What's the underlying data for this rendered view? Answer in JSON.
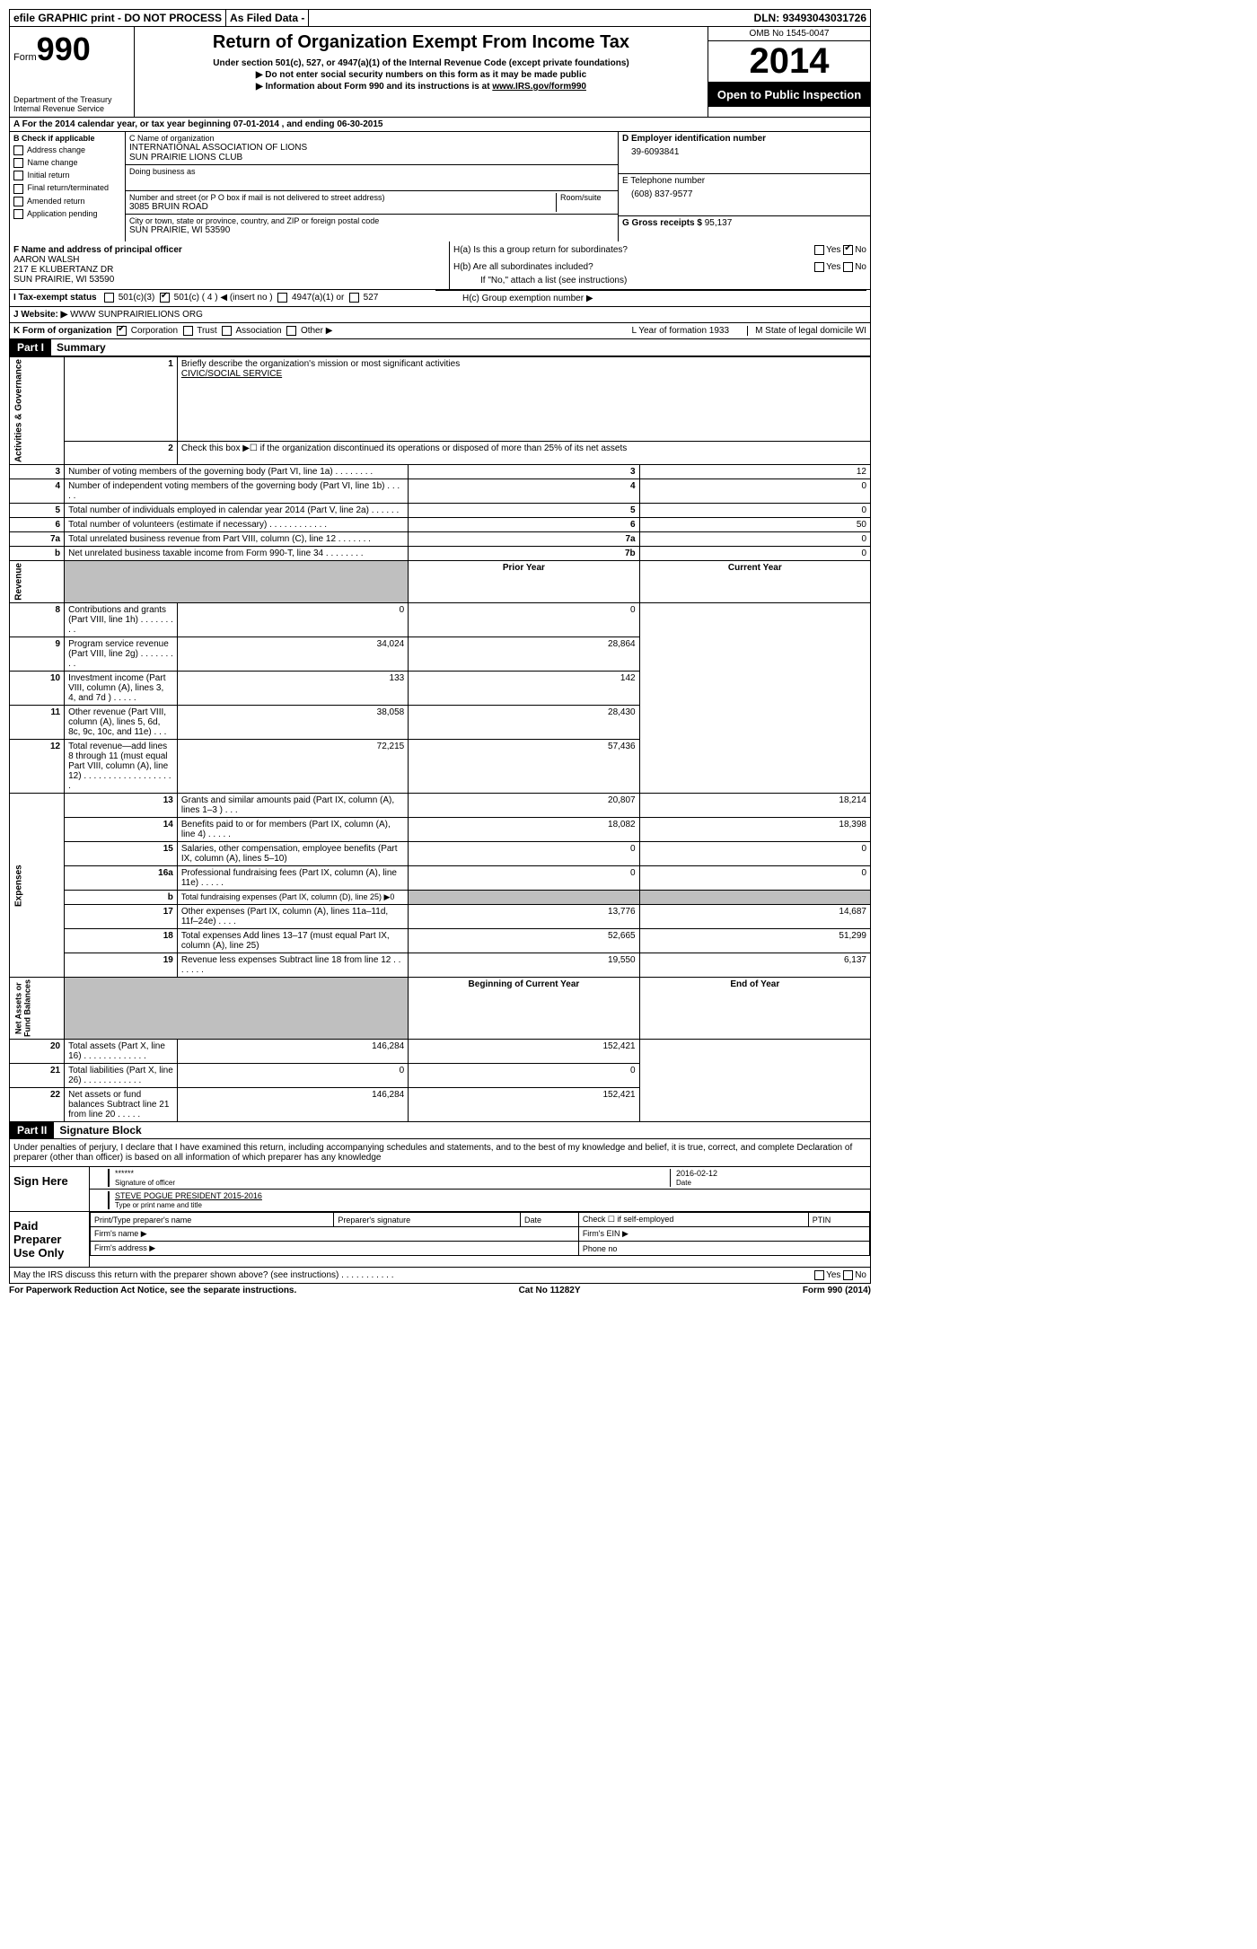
{
  "topbar": {
    "efile": "efile GRAPHIC print - DO NOT PROCESS",
    "asfiled": "As Filed Data -",
    "dln_label": "DLN:",
    "dln": "93493043031726"
  },
  "header": {
    "form_label": "Form",
    "form_no": "990",
    "dept": "Department of the Treasury",
    "irs": "Internal Revenue Service",
    "title": "Return of Organization Exempt From Income Tax",
    "subtitle": "Under section 501(c), 527, or 4947(a)(1) of the Internal Revenue Code (except private foundations)",
    "note1": "▶ Do not enter social security numbers on this form as it may be made public",
    "note2_prefix": "▶ Information about Form 990 and its instructions is at ",
    "note2_link": "www.IRS.gov/form990",
    "omb": "OMB No 1545-0047",
    "year": "2014",
    "open": "Open to Public Inspection"
  },
  "row_a": "A For the 2014 calendar year, or tax year beginning 07-01-2014    , and ending 06-30-2015",
  "section_b": {
    "label": "B Check if applicable",
    "items": [
      "Address change",
      "Name change",
      "Initial return",
      "Final return/terminated",
      "Amended return",
      "Application pending"
    ]
  },
  "section_c": {
    "name_label": "C Name of organization",
    "name1": "INTERNATIONAL ASSOCIATION OF LIONS",
    "name2": "SUN PRAIRIE LIONS CLUB",
    "dba_label": "Doing business as",
    "addr_label": "Number and street (or P O  box if mail is not delivered to street address)",
    "room_label": "Room/suite",
    "addr": "3085 BRUIN ROAD",
    "city_label": "City or town, state or province, country, and ZIP or foreign postal code",
    "city": "SUN PRAIRIE, WI  53590"
  },
  "section_d": {
    "label": "D Employer identification number",
    "value": "39-6093841"
  },
  "section_e": {
    "label": "E Telephone number",
    "value": "(608) 837-9577"
  },
  "section_g": {
    "label": "G Gross receipts $",
    "value": "95,137"
  },
  "section_f": {
    "label": "F   Name and address of principal officer",
    "name": "AARON WALSH",
    "street": "217 E KLUBERTANZ DR",
    "city": "SUN PRAIRIE, WI  53590"
  },
  "section_h": {
    "ha": "H(a)  Is this a group return for subordinates?",
    "hb": "H(b)  Are all subordinates included?",
    "hnote": "If \"No,\" attach a list  (see instructions)",
    "hc": "H(c)   Group exemption number ▶"
  },
  "row_i": {
    "label": "I  Tax-exempt status",
    "opts": [
      "501(c)(3)",
      "501(c) ( 4 ) ◀ (insert no )",
      "4947(a)(1) or",
      "527"
    ]
  },
  "row_j": {
    "label": "J  Website: ▶",
    "value": "WWW SUNPRAIRIELIONS ORG"
  },
  "row_k": {
    "label": "K Form of organization",
    "opts": [
      "Corporation",
      "Trust",
      "Association",
      "Other ▶"
    ],
    "l": "L Year of formation  1933",
    "m": "M State of legal domicile  WI"
  },
  "part1": {
    "header": "Part I",
    "title": "Summary"
  },
  "governance": {
    "q1_label": "Briefly describe the organization's mission or most significant activities",
    "q1_value": "CIVIC/SOCIAL SERVICE",
    "q2": "Check this box ▶☐ if the organization discontinued its operations or disposed of more than 25% of its net assets",
    "rows": [
      {
        "n": "3",
        "t": "Number of voting members of the governing body (Part VI, line 1a)  .   .   .   .   .   .   .   .",
        "k": "3",
        "v": "12"
      },
      {
        "n": "4",
        "t": "Number of independent voting members of the governing body (Part VI, line 1b)   .   .   .   .   .",
        "k": "4",
        "v": "0"
      },
      {
        "n": "5",
        "t": "Total number of individuals employed in calendar year 2014 (Part V, line 2a)    .   .   .   .   .   .",
        "k": "5",
        "v": "0"
      },
      {
        "n": "6",
        "t": "Total number of volunteers (estimate if necessary)   .   .   .   .   .   .   .   .   .   .   .   .",
        "k": "6",
        "v": "50"
      },
      {
        "n": "7a",
        "t": "Total unrelated business revenue from Part VIII, column (C), line 12   .   .   .   .   .   .   .",
        "k": "7a",
        "v": "0"
      },
      {
        "n": "b",
        "t": "Net unrelated business taxable income from Form 990-T, line 34   .   .   .   .   .   .   .   .",
        "k": "7b",
        "v": "0"
      }
    ]
  },
  "col_headers": {
    "prior": "Prior Year",
    "current": "Current Year",
    "boy": "Beginning of Current Year",
    "eoy": "End of Year"
  },
  "revenue": [
    {
      "n": "8",
      "t": "Contributions and grants (Part VIII, line 1h)   .   .   .   .   .   .   .   .   .",
      "p": "0",
      "c": "0"
    },
    {
      "n": "9",
      "t": "Program service revenue (Part VIII, line 2g)   .   .   .   .   .   .   .   .   .",
      "p": "34,024",
      "c": "28,864"
    },
    {
      "n": "10",
      "t": "Investment income (Part VIII, column (A), lines 3, 4, and 7d )   .   .   .   .   .",
      "p": "133",
      "c": "142"
    },
    {
      "n": "11",
      "t": "Other revenue (Part VIII, column (A), lines 5, 6d, 8c, 9c, 10c, and 11e)   .   .   .",
      "p": "38,058",
      "c": "28,430"
    },
    {
      "n": "12",
      "t": "Total revenue—add lines 8 through 11 (must equal Part VIII, column (A), line 12)  .   .   .   .   .   .   .   .   .   .   .   .   .   .   .   .   .   .   .",
      "p": "72,215",
      "c": "57,436"
    }
  ],
  "expenses": [
    {
      "n": "13",
      "t": "Grants and similar amounts paid (Part IX, column (A), lines 1–3 )    .   .   .",
      "p": "20,807",
      "c": "18,214"
    },
    {
      "n": "14",
      "t": "Benefits paid to or for members (Part IX, column (A), line 4)   .   .   .   .   .",
      "p": "18,082",
      "c": "18,398"
    },
    {
      "n": "15",
      "t": "Salaries, other compensation, employee benefits (Part IX, column (A), lines 5–10)",
      "p": "0",
      "c": "0"
    },
    {
      "n": "16a",
      "t": "Professional fundraising fees (Part IX, column (A), line 11e)   .   .   .   .   .",
      "p": "0",
      "c": "0"
    },
    {
      "n": "b",
      "t": "Total fundraising expenses (Part IX, column (D), line 25) ▶0",
      "p": "grey",
      "c": "grey"
    },
    {
      "n": "17",
      "t": "Other expenses (Part IX, column (A), lines 11a–11d, 11f–24e)    .   .   .   .",
      "p": "13,776",
      "c": "14,687"
    },
    {
      "n": "18",
      "t": "Total expenses  Add lines 13–17 (must equal Part IX, column (A), line 25)",
      "p": "52,665",
      "c": "51,299"
    },
    {
      "n": "19",
      "t": "Revenue less expenses  Subtract line 18 from line 12   .   .   .   .   .   .   .",
      "p": "19,550",
      "c": "6,137"
    }
  ],
  "netassets": [
    {
      "n": "20",
      "t": "Total assets (Part X, line 16)   .   .   .   .   .   .   .   .   .   .   .   .   .",
      "p": "146,284",
      "c": "152,421"
    },
    {
      "n": "21",
      "t": "Total liabilities (Part X, line 26)   .   .   .   .   .   .   .   .   .   .   .   .",
      "p": "0",
      "c": "0"
    },
    {
      "n": "22",
      "t": "Net assets or fund balances  Subtract line 21 from line 20   .   .   .   .   .",
      "p": "146,284",
      "c": "152,421"
    }
  ],
  "part2": {
    "header": "Part II",
    "title": "Signature Block"
  },
  "perjury": "Under penalties of perjury, I declare that I have examined this return, including accompanying schedules and statements, and to the best of my knowledge and belief, it is true, correct, and complete  Declaration of preparer (other than officer) is based on all information of which preparer has any knowledge",
  "sign": {
    "here": "Sign Here",
    "sig": "******",
    "sig_label": "Signature of officer",
    "date": "2016-02-12",
    "date_label": "Date",
    "name": "STEVE POGUE PRESIDENT 2015-2016",
    "name_label": "Type or print name and title"
  },
  "prep": {
    "label": "Paid Preparer Use Only",
    "h1": "Print/Type preparer's name",
    "h2": "Preparer's signature",
    "h3": "Date",
    "h4": "Check ☐ if self-employed",
    "h5": "PTIN",
    "firm_name": "Firm's name    ▶",
    "firm_ein": "Firm's EIN ▶",
    "firm_addr": "Firm's address ▶",
    "phone": "Phone no"
  },
  "discuss": "May the IRS discuss this return with the preparer shown above? (see instructions)   .   .   .   .   .   .   .   .   .   .   .",
  "footer": {
    "left": "For Paperwork Reduction Act Notice, see the separate instructions.",
    "mid": "Cat No 11282Y",
    "right": "Form 990 (2014)"
  }
}
